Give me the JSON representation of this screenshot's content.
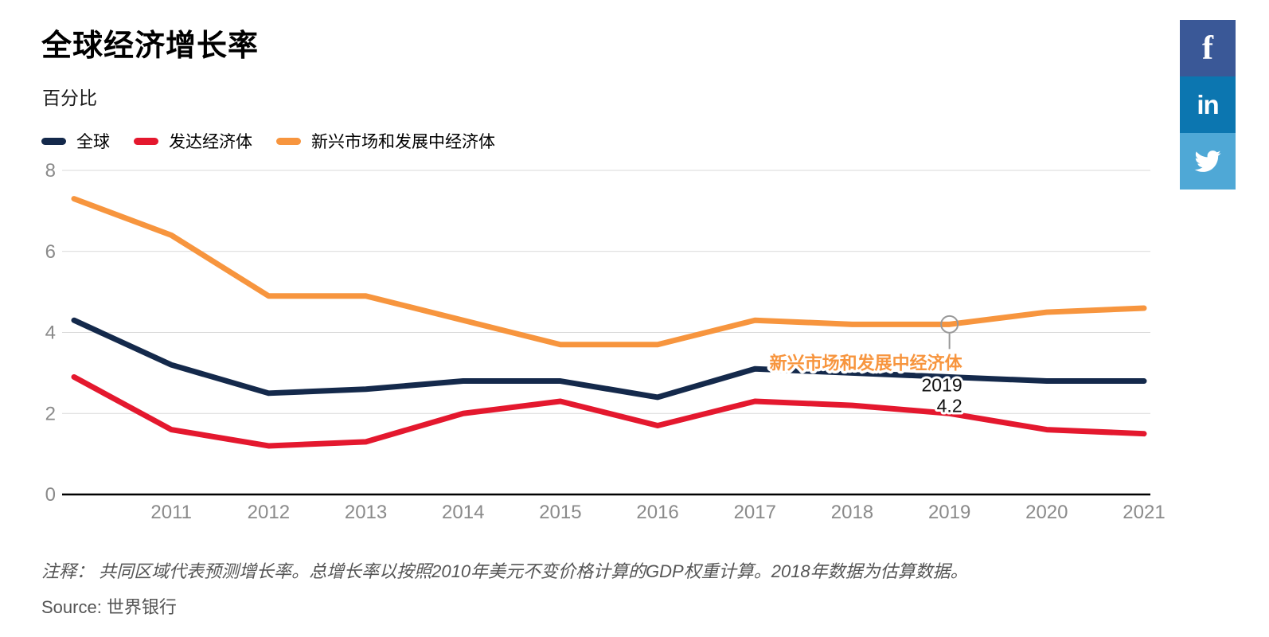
{
  "title": "全球经济增长率",
  "subtitle": "百分比",
  "chart_data": {
    "type": "line",
    "x": [
      2010,
      2011,
      2012,
      2013,
      2014,
      2015,
      2016,
      2017,
      2018,
      2019,
      2020,
      2021
    ],
    "series": [
      {
        "name": "全球",
        "color": "#14294B",
        "values": [
          4.3,
          3.2,
          2.5,
          2.6,
          2.8,
          2.8,
          2.4,
          3.1,
          3.0,
          2.9,
          2.8,
          2.8
        ]
      },
      {
        "name": "发达经济体",
        "color": "#E4182E",
        "values": [
          2.9,
          1.6,
          1.2,
          1.3,
          2.0,
          2.3,
          1.7,
          2.3,
          2.2,
          2.0,
          1.6,
          1.5
        ]
      },
      {
        "name": "新兴市场和发展中经济体",
        "color": "#F7953E",
        "values": [
          7.3,
          6.4,
          4.9,
          4.9,
          4.3,
          3.7,
          3.7,
          4.3,
          4.2,
          4.2,
          4.5,
          4.6
        ]
      }
    ],
    "title": "全球经济增长率",
    "ylabel": "百分比",
    "xlabel": "",
    "ylim": [
      0,
      8
    ],
    "yticks": [
      0,
      2,
      4,
      6,
      8
    ],
    "xticks": [
      2011,
      2012,
      2013,
      2014,
      2015,
      2016,
      2017,
      2018,
      2019,
      2020,
      2021
    ],
    "grid": true,
    "legend_position": "top-left"
  },
  "tooltip": {
    "series": "新兴市场和发展中经济体",
    "year": "2019",
    "value": "4.2"
  },
  "note": "注释： 共同区域代表预测增长率。总增长率以按照2010年美元不变价格计算的GDP权重计算。2018年数据为估算数据。",
  "source": "Source: 世界银行",
  "social": [
    {
      "name": "facebook",
      "color": "#3A5897",
      "glyph": "f"
    },
    {
      "name": "linkedin",
      "color": "#0C76B0",
      "glyph": "in"
    },
    {
      "name": "twitter",
      "color": "#4FA8D6"
    }
  ],
  "colors": {
    "grid": "#D9D9D9",
    "axis": "#000000",
    "tick_text": "#8A8A8A",
    "marker_stroke": "#999999"
  }
}
